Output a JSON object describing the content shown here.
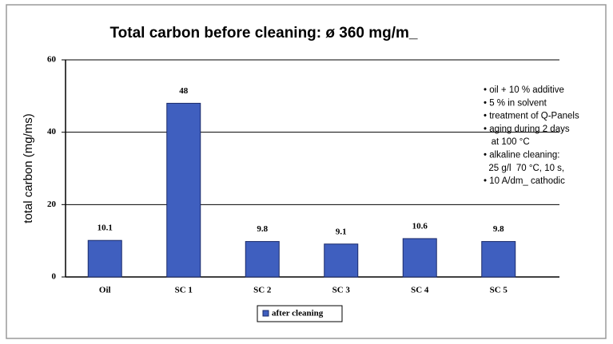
{
  "chart_data": {
    "type": "bar",
    "title": "Total carbon before cleaning: ø 360 mg/m_",
    "y_label": "total carbon (mg/ms)",
    "categories": [
      "Oil",
      "SC 1",
      "SC 2",
      "SC 3",
      "SC 4",
      "SC 5"
    ],
    "series": [
      {
        "name": "after cleaning",
        "color": "#3f5fbf",
        "values": [
          10.1,
          48,
          9.8,
          9.1,
          10.6,
          9.8
        ]
      }
    ],
    "ylim": [
      0,
      60
    ],
    "yticks": [
      0,
      20,
      40,
      60
    ],
    "grid": true,
    "annotations": [
      "• oil + 10 % additive",
      "• 5 % in solvent",
      "• treatment of Q-Panels",
      "• aging during 2 days",
      "   at 100 °C",
      "• alkaline cleaning:",
      "  25 g/l  70 °C, 10 s,",
      "• 10 A/dm_ cathodic"
    ]
  }
}
